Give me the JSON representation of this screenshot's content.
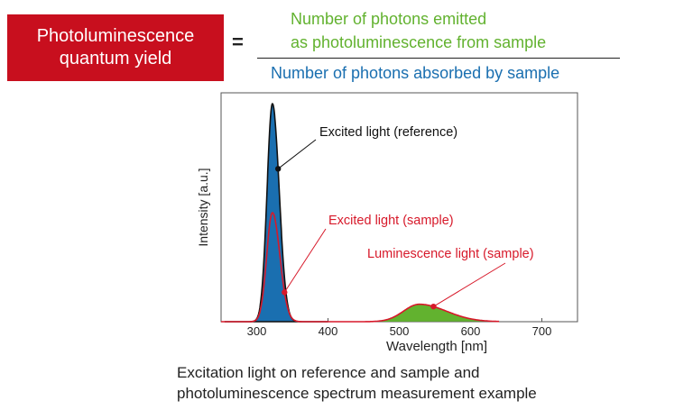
{
  "formula": {
    "lhs_line1": "Photoluminescence",
    "lhs_line2": "quantum yield",
    "equals": "=",
    "numerator_line1": "Number of photons emitted",
    "numerator_line2": "as photoluminescence from sample",
    "denominator": "Number of photons absorbed by sample"
  },
  "chart_data": {
    "type": "area",
    "xlabel": "Wavelength [nm]",
    "ylabel": "Intensity [a.u.]",
    "xlim": [
      250,
      750
    ],
    "ylim": [
      0,
      1.05
    ],
    "x_ticks": [
      "300",
      "400",
      "500",
      "600",
      "700"
    ],
    "x_tick_values": [
      300,
      400,
      500,
      600,
      700
    ],
    "series": [
      {
        "name": "Excited light (reference)",
        "peak_wavelength": 322,
        "peak_intensity": 1.0,
        "color": "#1a6fb0"
      },
      {
        "name": "Excited light (sample)",
        "peak_wavelength": 322,
        "peak_intensity": 0.5,
        "color": "#d7192a"
      },
      {
        "name": "Luminescence light (sample)",
        "peak_wavelength": 528,
        "peak_intensity": 0.08,
        "color": "#62b22f"
      }
    ],
    "annotations": [
      "Excited light (reference)",
      "Excited light (sample)",
      "Luminescence light (sample)"
    ]
  },
  "caption": {
    "line1": "Excitation light on reference and sample and",
    "line2": "photoluminescence spectrum measurement example"
  },
  "colors": {
    "red": "#c80f1e",
    "blue": "#1a6fb0",
    "green": "#62b22f"
  }
}
